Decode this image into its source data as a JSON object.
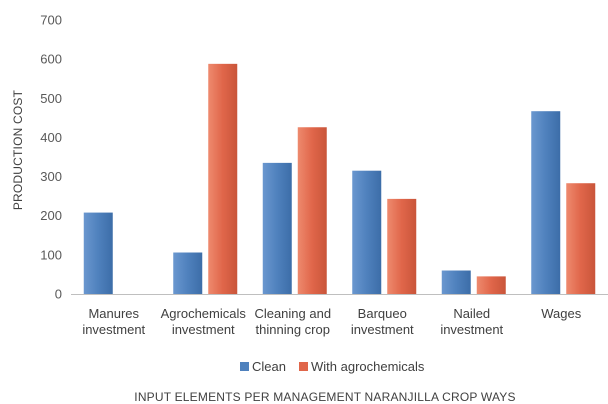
{
  "chart_data": {
    "type": "bar",
    "categories": [
      [
        "Manures",
        "investment"
      ],
      [
        "Agrochemicals",
        "investment"
      ],
      [
        "Cleaning and",
        "thinning crop"
      ],
      [
        "Barqueo",
        "investment"
      ],
      [
        "Nailed",
        "investment"
      ],
      [
        "Wages"
      ]
    ],
    "series": [
      {
        "name": "Clean",
        "values": [
          208,
          106,
          335,
          315,
          60,
          467
        ],
        "color": "#4F81BD"
      },
      {
        "name": "With agrochemicals",
        "values": [
          0,
          588,
          426,
          243,
          45,
          283
        ],
        "color": "#E0664A"
      }
    ],
    "xlabel": "INPUT ELEMENTS PER MANAGEMENT NARANJILLA CROP WAYS",
    "ylabel": "PRODUCTION COST",
    "ylim": [
      0,
      700
    ],
    "yticks": [
      0,
      100,
      200,
      300,
      400,
      500,
      600,
      700
    ],
    "grid": false,
    "legend": "bottom"
  }
}
